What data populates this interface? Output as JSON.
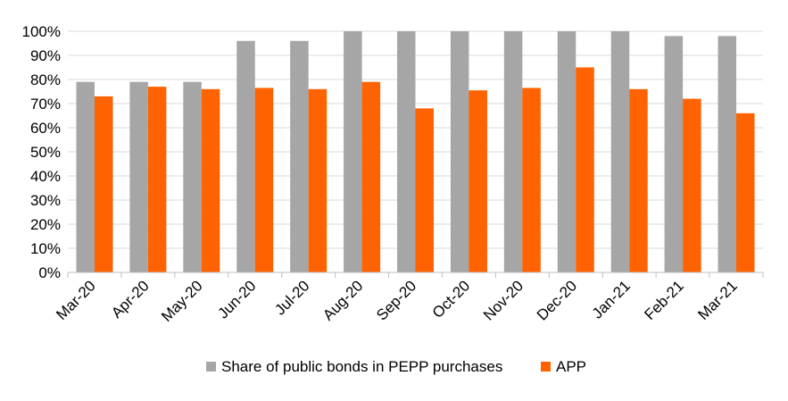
{
  "chart_data": {
    "type": "bar",
    "categories": [
      "Mar-20",
      "Apr-20",
      "May-20",
      "Jun-20",
      "Jul-20",
      "Aug-20",
      "Sep-20",
      "Oct-20",
      "Nov-20",
      "Dec-20",
      "Jan-21",
      "Feb-21",
      "Mar-21"
    ],
    "series": [
      {
        "name": "Share of public bonds in PEPP purchases",
        "color": "#a6a6a6",
        "values": [
          0.79,
          0.79,
          0.79,
          0.96,
          0.96,
          1.0,
          1.0,
          1.0,
          1.0,
          1.0,
          1.0,
          0.98,
          0.98
        ]
      },
      {
        "name": "APP",
        "color": "#ff6200",
        "values": [
          0.73,
          0.77,
          0.76,
          0.765,
          0.76,
          0.79,
          0.68,
          0.755,
          0.765,
          0.85,
          0.76,
          0.72,
          0.66
        ]
      }
    ],
    "ylim": [
      0,
      1
    ],
    "yticks": [
      "0%",
      "10%",
      "20%",
      "30%",
      "40%",
      "50%",
      "60%",
      "70%",
      "80%",
      "90%",
      "100%"
    ],
    "grid": true,
    "legend_position": "bottom"
  }
}
